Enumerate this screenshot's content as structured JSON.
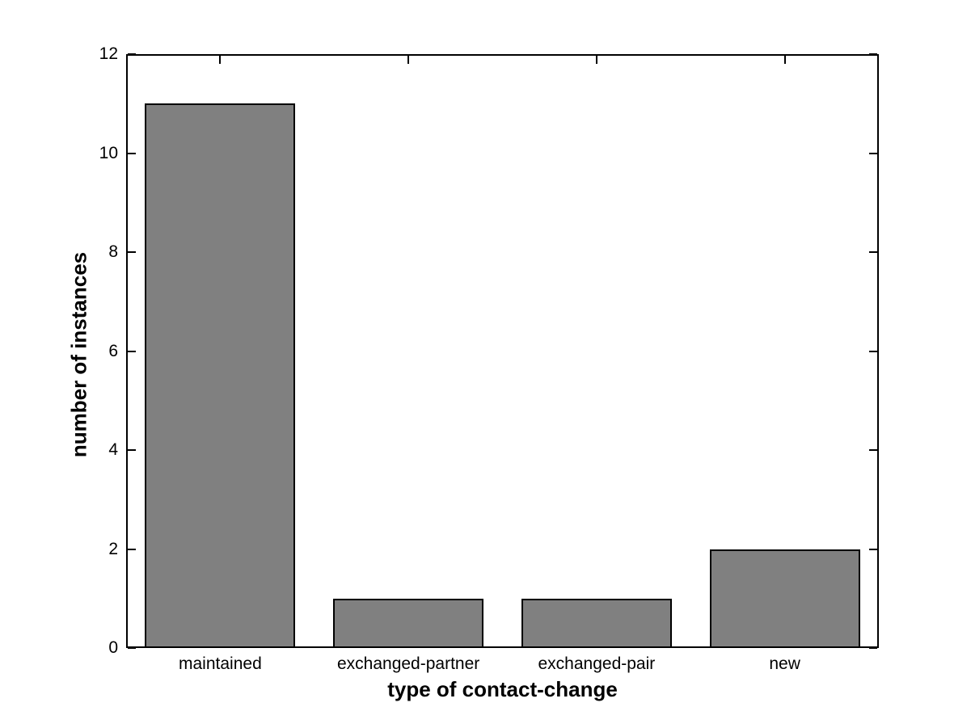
{
  "chart_data": {
    "type": "bar",
    "title": "",
    "categories": [
      "maintained",
      "exchanged-partner",
      "exchanged-pair",
      "new"
    ],
    "values": [
      11,
      1,
      1,
      2
    ],
    "xlabel": "type of contact-change",
    "ylabel": "number of instances",
    "ylim": [
      0,
      12
    ],
    "yticks": [
      0,
      2,
      4,
      6,
      8,
      10,
      12
    ],
    "bar_width_fraction": 0.8,
    "grid": false,
    "legend": "none",
    "colors": {
      "bar_fill": "#808080",
      "bar_edge": "#000000",
      "axis": "#000000",
      "text": "#000000",
      "background": "#ffffff"
    }
  }
}
